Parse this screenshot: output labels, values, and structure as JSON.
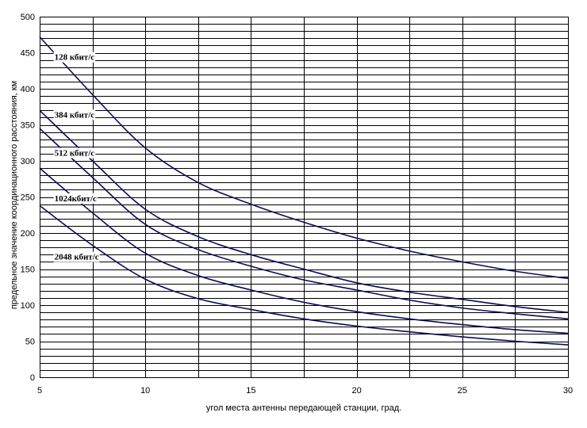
{
  "chart_data": {
    "type": "line",
    "title": "",
    "xlabel": "угол места антенны передающей станции, град.",
    "ylabel": "предельное значение координационного расстояния, км",
    "xlim": [
      5,
      30
    ],
    "ylim": [
      0,
      500
    ],
    "x_ticks": [
      5,
      10,
      15,
      20,
      25,
      30
    ],
    "y_ticks": [
      0,
      50,
      100,
      150,
      200,
      250,
      300,
      350,
      400,
      450,
      500
    ],
    "y_minor_step": 10,
    "x_minor_step": 2.5,
    "grid": true,
    "x": [
      5,
      7.5,
      10,
      12.5,
      15,
      17.5,
      20,
      22.5,
      25,
      27.5,
      30
    ],
    "series": [
      {
        "name": "128 кбит/с",
        "label_at": [
          5.7,
          440
        ],
        "values": [
          472,
          392,
          318,
          270,
          240,
          215,
          193,
          175,
          160,
          147,
          137
        ]
      },
      {
        "name": "384 кбит/с",
        "label_at": [
          5.7,
          360
        ],
        "values": [
          370,
          300,
          233,
          195,
          170,
          150,
          131,
          118,
          108,
          98,
          90
        ]
      },
      {
        "name": "512 кбит/с",
        "label_at": [
          5.7,
          307
        ],
        "values": [
          345,
          277,
          212,
          177,
          154,
          135,
          121,
          107,
          96,
          88,
          81
        ]
      },
      {
        "name": "1024кбит/с",
        "label_at": [
          5.7,
          244
        ],
        "values": [
          290,
          228,
          172,
          141,
          121,
          104,
          91,
          81,
          73,
          66,
          61
        ]
      },
      {
        "name": "2048 кбит/с",
        "label_at": [
          5.7,
          163
        ],
        "values": [
          238,
          183,
          136,
          109,
          94,
          81,
          71,
          63,
          56,
          50,
          45
        ]
      }
    ],
    "colors": {
      "line": "#0b0b5a",
      "grid": "#000000"
    }
  }
}
